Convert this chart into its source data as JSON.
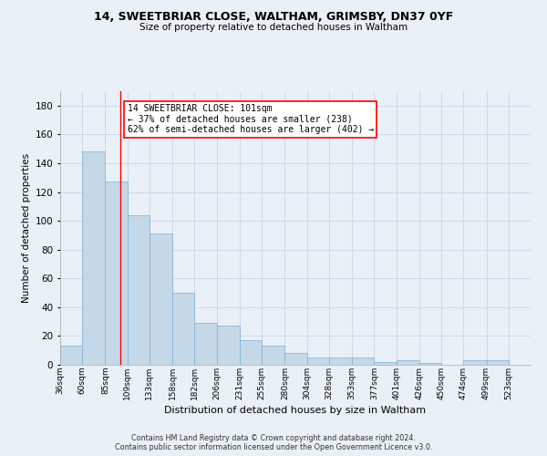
{
  "title1": "14, SWEETBRIAR CLOSE, WALTHAM, GRIMSBY, DN37 0YF",
  "title2": "Size of property relative to detached houses in Waltham",
  "xlabel": "Distribution of detached houses by size in Waltham",
  "ylabel": "Number of detached properties",
  "annotation_line1": "14 SWEETBRIAR CLOSE: 101sqm",
  "annotation_line2": "← 37% of detached houses are smaller (238)",
  "annotation_line3": "62% of semi-detached houses are larger (402) →",
  "bar_color": "#c5d8e8",
  "bar_edge_color": "#7bafd4",
  "red_line_x": 101,
  "categories": [
    "36sqm",
    "60sqm",
    "85sqm",
    "109sqm",
    "133sqm",
    "158sqm",
    "182sqm",
    "206sqm",
    "231sqm",
    "255sqm",
    "280sqm",
    "304sqm",
    "328sqm",
    "353sqm",
    "377sqm",
    "401sqm",
    "426sqm",
    "450sqm",
    "474sqm",
    "499sqm",
    "523sqm"
  ],
  "bin_edges": [
    36,
    60,
    85,
    109,
    133,
    158,
    182,
    206,
    231,
    255,
    280,
    304,
    328,
    353,
    377,
    401,
    426,
    450,
    474,
    499,
    523,
    547
  ],
  "values": [
    13,
    148,
    127,
    104,
    91,
    50,
    29,
    27,
    17,
    13,
    8,
    5,
    5,
    5,
    2,
    3,
    1,
    0,
    3,
    3,
    0
  ],
  "ylim": [
    0,
    190
  ],
  "yticks": [
    0,
    20,
    40,
    60,
    80,
    100,
    120,
    140,
    160,
    180
  ],
  "grid_color": "#d0d8e8",
  "background_color": "#eaf0f8",
  "fig_background_color": "#eaf0f8",
  "footer1": "Contains HM Land Registry data © Crown copyright and database right 2024.",
  "footer2": "Contains public sector information licensed under the Open Government Licence v3.0."
}
